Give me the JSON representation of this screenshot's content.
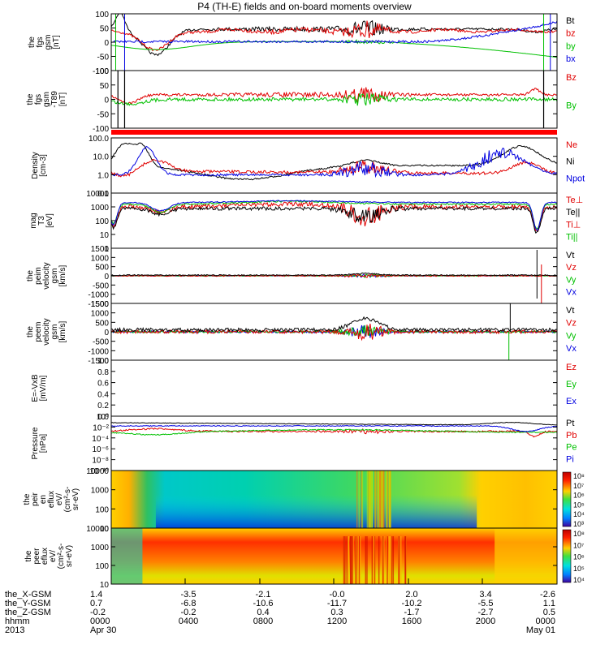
{
  "title": "P4 (TH-E) fields and on-board moments overview",
  "colors": {
    "black": "#000000",
    "red": "#e00000",
    "green": "#00c000",
    "blue": "#0000e0",
    "strip": "#ff0000"
  },
  "chart_data": [
    {
      "type": "line",
      "panel": "fgs",
      "ylabel": [
        "the",
        "fgs",
        "gsm",
        "[nT]"
      ],
      "yticks": [
        "100",
        "50",
        "0",
        "-50",
        "-100"
      ],
      "ylim": [
        -100,
        100
      ],
      "legend": [
        {
          "name": "Bt",
          "color": "black"
        },
        {
          "name": "bz",
          "color": "red"
        },
        {
          "name": "by",
          "color": "green"
        },
        {
          "name": "bx",
          "color": "blue"
        }
      ]
    },
    {
      "type": "line",
      "panel": "fgl",
      "ylabel": [
        "the",
        "fgs",
        "gsm",
        "-T89",
        "[nT]"
      ],
      "yticks": [
        "100",
        "50",
        "0",
        "-50",
        "-100"
      ],
      "ylim": [
        -120,
        100
      ],
      "legend": [
        {
          "name": "Bz",
          "color": "red"
        },
        {
          "name": "By",
          "color": "green"
        }
      ]
    },
    {
      "type": "line",
      "panel": "density",
      "ylabel": [
        "Density",
        "[cm-3]"
      ],
      "yticks": [
        "100.0",
        "10.0",
        "1.0",
        "0.1"
      ],
      "log": true,
      "legend": [
        {
          "name": "Ne",
          "color": "red"
        },
        {
          "name": "Ni",
          "color": "black"
        },
        {
          "name": "Npot",
          "color": "blue"
        }
      ]
    },
    {
      "type": "line",
      "panel": "temperature",
      "ylabel": [
        "mag",
        "T3",
        "[eV]"
      ],
      "yticks": [
        "10000",
        "1000",
        "100",
        "10",
        "1"
      ],
      "log": true,
      "legend": [
        {
          "name": "Te⊥",
          "color": "red"
        },
        {
          "name": "Te||",
          "color": "black"
        },
        {
          "name": "Ti⊥",
          "color": "red"
        },
        {
          "name": "Ti||",
          "color": "green"
        }
      ]
    },
    {
      "type": "line",
      "panel": "peim",
      "ylabel": [
        "the",
        "peim",
        "velocity",
        "gsm",
        "[km/s]"
      ],
      "yticks": [
        "1500",
        "1000",
        "500",
        "0",
        "-500",
        "-1000",
        "-1500"
      ],
      "ylim": [
        -1500,
        1500
      ],
      "legend": [
        {
          "name": "Vt",
          "color": "black"
        },
        {
          "name": "Vz",
          "color": "red"
        },
        {
          "name": "Vy",
          "color": "green"
        },
        {
          "name": "Vx",
          "color": "blue"
        }
      ]
    },
    {
      "type": "line",
      "panel": "peem",
      "ylabel": [
        "the",
        "peem",
        "velocity",
        "gsm",
        "[km/s]"
      ],
      "yticks": [
        "1500",
        "1000",
        "500",
        "0",
        "-500",
        "-1000",
        "-1500"
      ],
      "ylim": [
        -1500,
        1500
      ],
      "legend": [
        {
          "name": "Vt",
          "color": "black"
        },
        {
          "name": "Vz",
          "color": "red"
        },
        {
          "name": "Vy",
          "color": "green"
        },
        {
          "name": "Vx",
          "color": "blue"
        }
      ]
    },
    {
      "type": "line",
      "panel": "exb",
      "ylabel": [
        "E=-VxB",
        "[mV/m]"
      ],
      "yticks": [
        "1.0",
        "0.8",
        "0.6",
        "0.4",
        "0.2",
        "0.0"
      ],
      "ylim": [
        0,
        1
      ],
      "legend": [
        {
          "name": "Ez",
          "color": "red"
        },
        {
          "name": "Ey",
          "color": "green"
        },
        {
          "name": "Ex",
          "color": "blue"
        }
      ]
    },
    {
      "type": "line",
      "panel": "pressure",
      "ylabel": [
        "Pressure",
        "[nPa]"
      ],
      "yticks": [
        "10⁰",
        "10⁻²",
        "10⁻⁴",
        "10⁻⁶",
        "10⁻⁸",
        "10⁻¹⁰"
      ],
      "log": true,
      "legend": [
        {
          "name": "Pt",
          "color": "black"
        },
        {
          "name": "Pb",
          "color": "red"
        },
        {
          "name": "Pe",
          "color": "green"
        },
        {
          "name": "Pi",
          "color": "blue"
        }
      ]
    },
    {
      "type": "heatmap",
      "panel": "peir",
      "ylabel": [
        "the",
        "peir",
        "en",
        "eflux",
        "eV/",
        "(cm²-s-",
        "sr-eV)"
      ],
      "yticks": [
        "10000",
        "1000",
        "100",
        "10"
      ],
      "cbar": [
        "10⁸",
        "10⁷",
        "10⁶",
        "10⁵",
        "10⁴",
        "10³"
      ]
    },
    {
      "type": "heatmap",
      "panel": "peer",
      "ylabel": [
        "the",
        "peer",
        "eflux",
        "eV/",
        "(cm²-s-",
        "sr-eV)"
      ],
      "yticks": [
        "10000",
        "1000",
        "100",
        "10"
      ],
      "cbar": [
        "10⁸",
        "10⁷",
        "10⁶",
        "10⁵",
        "10⁴"
      ]
    }
  ],
  "xaxis": {
    "labels": [
      "the_X-GSM",
      "the_Y-GSM",
      "the_Z-GSM",
      "hhmm",
      "2013"
    ],
    "columns": [
      [
        "1.4",
        "0.7",
        "-0.2",
        "0000",
        "Apr 30"
      ],
      [
        "-3.5",
        "-6.8",
        "-0.2",
        "0400",
        ""
      ],
      [
        "-2.1",
        "-10.6",
        "0.4",
        "0800",
        ""
      ],
      [
        "-0.0",
        "-11.7",
        "0.3",
        "1200",
        ""
      ],
      [
        "2.0",
        "-10.2",
        "-1.7",
        "1600",
        ""
      ],
      [
        "3.4",
        "-5.5",
        "-2.7",
        "2000",
        ""
      ],
      [
        "-2.6",
        "1.1",
        "0.5",
        "0000",
        "May 01"
      ]
    ]
  }
}
